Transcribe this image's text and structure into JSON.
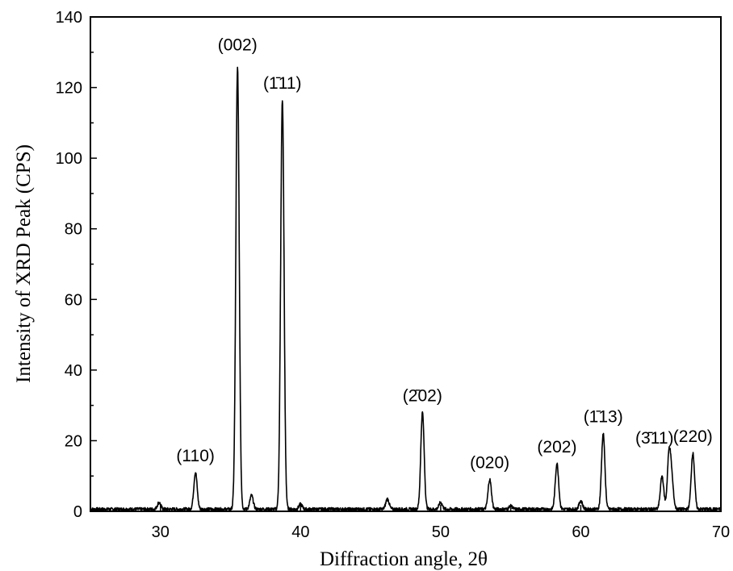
{
  "chart_data": {
    "type": "line",
    "title": "",
    "xlabel": "Diffraction angle, 2θ",
    "ylabel": "Intensity of XRD Peak (CPS)",
    "xlim": [
      25,
      70
    ],
    "ylim": [
      0,
      140
    ],
    "xticks": [
      30,
      40,
      50,
      60,
      70
    ],
    "yticks": [
      0,
      20,
      40,
      60,
      80,
      100,
      120,
      140
    ],
    "grid": false,
    "baseline": 0.6,
    "peaks": [
      {
        "label": "(110)",
        "x": 32.5,
        "y": 11.0
      },
      {
        "label": "(002)",
        "x": 35.5,
        "y": 125.5
      },
      {
        "label": "(1̄11)",
        "x": 38.7,
        "y": 116.5
      },
      {
        "label": "(2̄02)",
        "x": 48.7,
        "y": 28.0
      },
      {
        "label": "(020)",
        "x": 53.5,
        "y": 9.0
      },
      {
        "label": "(202)",
        "x": 58.3,
        "y": 13.5
      },
      {
        "label": "(1̄13)",
        "x": 61.6,
        "y": 22.0
      },
      {
        "label": "(3̄11)",
        "x": 66.3,
        "y": 16.0
      },
      {
        "label": "(220)",
        "x": 68.0,
        "y": 16.5
      }
    ],
    "minor_peaks": [
      {
        "x": 29.9,
        "y": 2.5
      },
      {
        "x": 36.5,
        "y": 4.5
      },
      {
        "x": 40.0,
        "y": 2.0
      },
      {
        "x": 46.2,
        "y": 3.5
      },
      {
        "x": 50.0,
        "y": 2.5
      },
      {
        "x": 55.0,
        "y": 1.5
      },
      {
        "x": 60.0,
        "y": 3.0
      },
      {
        "x": 65.8,
        "y": 10.0
      },
      {
        "x": 66.5,
        "y": 8.0
      }
    ]
  }
}
